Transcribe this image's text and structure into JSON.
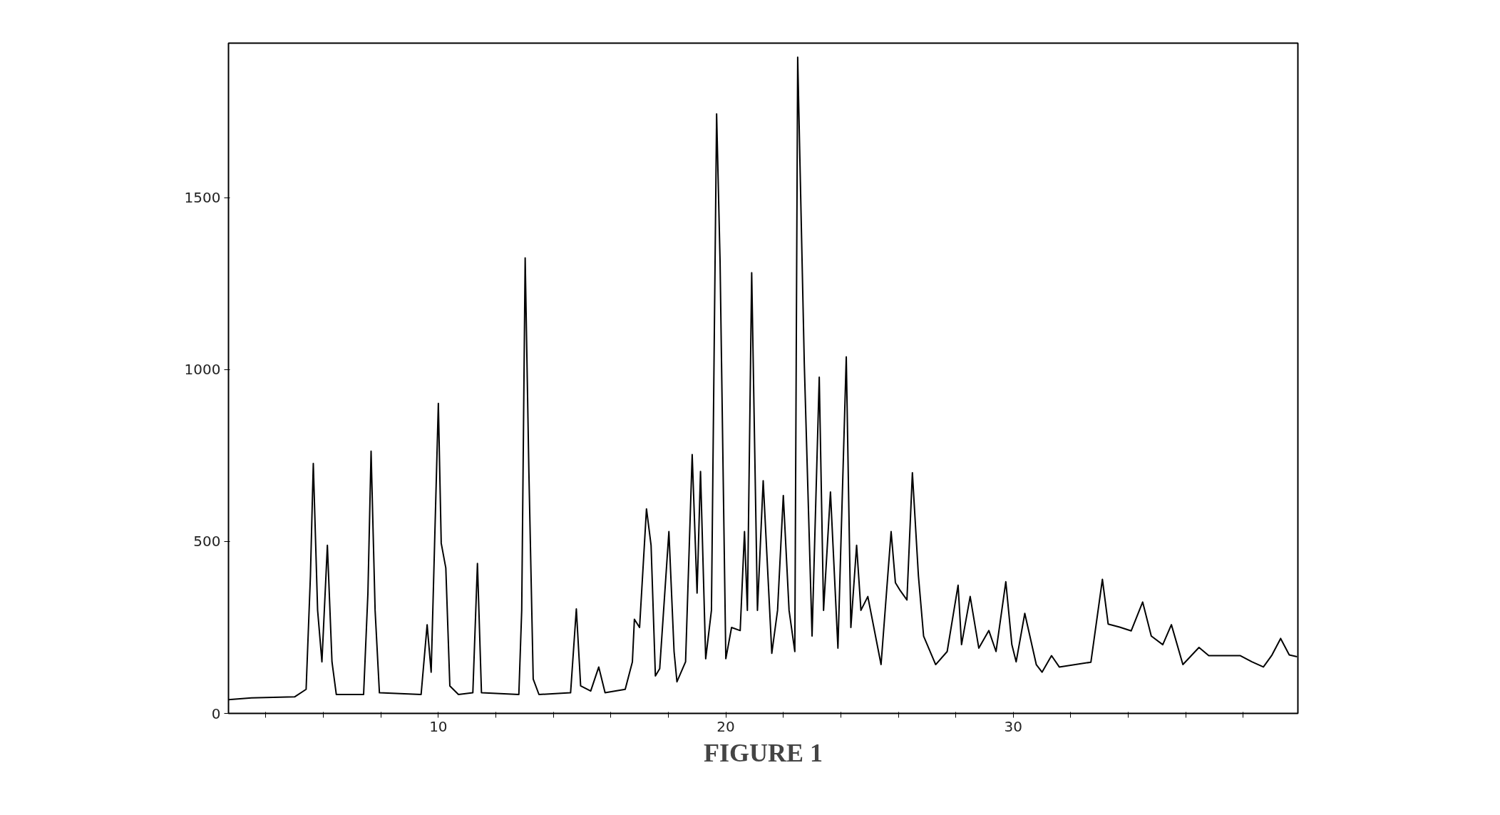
{
  "chart_data": {
    "type": "line",
    "annotations": [
      "FIGURE 1"
    ],
    "xlim": [
      2.7,
      39.9
    ],
    "ylim": [
      0,
      1950
    ],
    "xticks": [
      {
        "value": 4,
        "label": null
      },
      {
        "value": 6,
        "label": null
      },
      {
        "value": 8,
        "label": null
      },
      10,
      {
        "value": 12,
        "label": null
      },
      {
        "value": 14,
        "label": null
      },
      {
        "value": 16,
        "label": null
      },
      {
        "value": 18,
        "label": null
      },
      20,
      {
        "value": 22,
        "label": null
      },
      {
        "value": 24,
        "label": null
      },
      {
        "value": 26,
        "label": null
      },
      {
        "value": 28,
        "label": null
      },
      30,
      {
        "value": 32,
        "label": null
      },
      {
        "value": 34,
        "label": null
      },
      {
        "value": 36,
        "label": null
      },
      {
        "value": 38,
        "label": null
      }
    ],
    "yticks": [
      0,
      500,
      1000,
      1500
    ],
    "grid": false,
    "line_style": "solid",
    "series": [
      {
        "color": "#000000",
        "x": [
          2.7,
          3.5,
          5.0,
          5.4,
          5.55,
          5.65,
          5.8,
          5.95,
          6.14,
          6.3,
          6.45,
          7.4,
          7.55,
          7.66,
          7.8,
          7.95,
          9.4,
          9.61,
          9.75,
          10.0,
          10.1,
          10.26,
          10.4,
          10.7,
          11.2,
          11.36,
          11.5,
          12.8,
          12.9,
          13.02,
          13.15,
          13.3,
          13.5,
          14.6,
          14.8,
          14.95,
          15.3,
          15.58,
          15.8,
          16.5,
          16.75,
          16.82,
          17.0,
          17.24,
          17.4,
          17.55,
          17.7,
          18.02,
          18.2,
          18.3,
          18.6,
          18.83,
          19.0,
          19.12,
          19.3,
          19.5,
          19.68,
          19.8,
          20.0,
          20.2,
          20.5,
          20.65,
          20.75,
          20.9,
          21.1,
          21.3,
          21.6,
          21.8,
          22.0,
          22.2,
          22.4,
          22.5,
          22.73,
          23.0,
          23.25,
          23.4,
          23.64,
          23.9,
          24.19,
          24.35,
          24.55,
          24.7,
          24.94,
          25.4,
          25.75,
          25.9,
          26.07,
          26.3,
          26.49,
          26.7,
          26.88,
          27.3,
          27.7,
          28.08,
          28.2,
          28.5,
          28.8,
          29.15,
          29.4,
          29.74,
          29.95,
          30.1,
          30.4,
          30.8,
          31.0,
          31.33,
          31.6,
          32.7,
          33.1,
          33.3,
          33.7,
          34.1,
          34.5,
          34.8,
          35.2,
          35.5,
          35.9,
          36.46,
          36.8,
          37.9,
          38.3,
          38.7,
          39.0,
          39.3,
          39.6,
          39.87
        ],
        "values": [
          40,
          45,
          48,
          70,
          400,
          727,
          300,
          150,
          489,
          150,
          55,
          55,
          350,
          763,
          300,
          60,
          55,
          258,
          120,
          902,
          495,
          423,
          80,
          55,
          60,
          436,
          60,
          55,
          300,
          1325,
          700,
          100,
          55,
          60,
          304,
          80,
          65,
          135,
          60,
          70,
          150,
          274,
          250,
          595,
          489,
          109,
          130,
          529,
          180,
          92,
          150,
          753,
          350,
          704,
          159,
          300,
          1744,
          1315,
          159,
          250,
          241,
          529,
          300,
          1282,
          300,
          677,
          175,
          300,
          634,
          300,
          180,
          1909,
          1017,
          225,
          978,
          300,
          644,
          190,
          1037,
          250,
          489,
          300,
          340,
          142,
          529,
          380,
          357,
          330,
          700,
          400,
          225,
          142,
          180,
          373,
          200,
          340,
          190,
          241,
          180,
          383,
          200,
          150,
          291,
          142,
          120,
          168,
          135,
          149,
          390,
          260,
          251,
          240,
          324,
          225,
          200,
          258,
          142,
          192,
          168,
          168,
          150,
          135,
          170,
          218,
          170,
          165
        ]
      }
    ]
  }
}
